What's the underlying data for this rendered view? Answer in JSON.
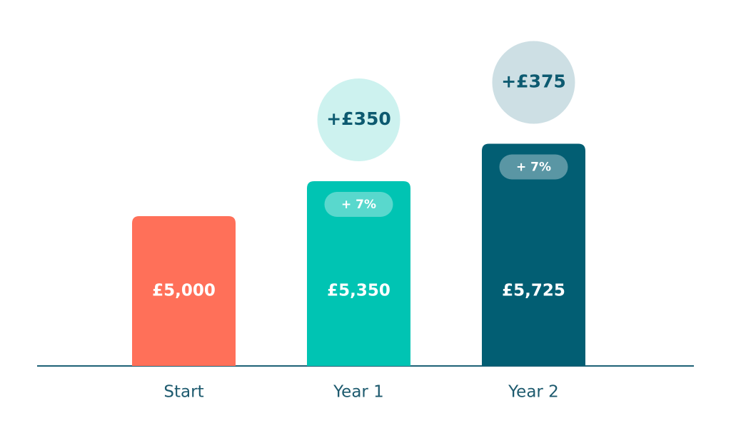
{
  "chart_data": {
    "type": "bar",
    "categories": [
      "Start",
      "Year 1",
      "Year 2"
    ],
    "values": [
      5000,
      5350,
      5725
    ],
    "value_labels": [
      "£5,000",
      "£5,350",
      "£5,725"
    ],
    "colors": [
      "#ff7059",
      "#00c4b3",
      "#025e73"
    ],
    "increase_labels": [
      null,
      "+£350",
      "+£375"
    ],
    "increase_colors": [
      null,
      "#cdf2ef",
      "#cddfe4"
    ],
    "rate_labels": [
      null,
      "+ 7%",
      "+ 7%"
    ],
    "ylim": [
      3500,
      6500
    ]
  }
}
